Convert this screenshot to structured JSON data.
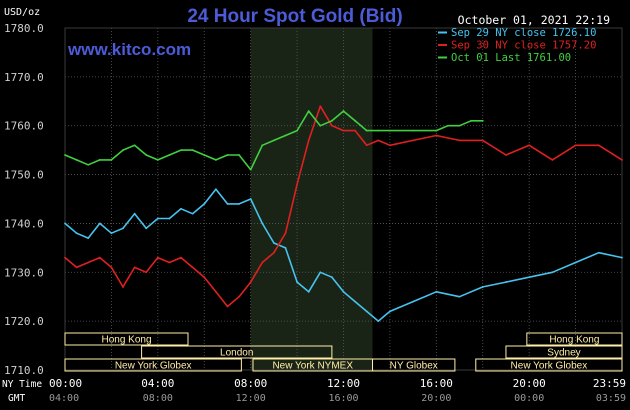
{
  "chart_data": {
    "type": "line",
    "title": "24 Hour Spot Gold (Bid)",
    "watermark": "www.kitco.com",
    "timestamp": "October 01, 2021 22:19",
    "ylabel": "USD/oz",
    "ylim": [
      1710,
      1780
    ],
    "yticks": [
      "1780.0",
      "1770.0",
      "1760.0",
      "1750.0",
      "1740.0",
      "1730.0",
      "1720.0",
      "1710.0"
    ],
    "x_ny_label": "NY Time",
    "x_gmt_label": "GMT",
    "x_ny_ticks": [
      "00:00",
      "04:00",
      "08:00",
      "12:00",
      "16:00",
      "20:00",
      "23:59"
    ],
    "x_gmt_ticks": [
      "04:00",
      "08:00",
      "12:00",
      "16:00",
      "20:00",
      "00:00",
      "03:59"
    ],
    "xlim_hours": [
      0,
      24
    ],
    "highlight_hours": [
      8,
      13.25
    ],
    "grid": true,
    "legend_position": "top-right",
    "series": [
      {
        "name": "Sep 29 NY close 1726.10",
        "color": "#46c3ee",
        "x": [
          0,
          0.5,
          1,
          1.5,
          2,
          2.5,
          3,
          3.5,
          4,
          4.5,
          5,
          5.5,
          6,
          6.5,
          7,
          7.5,
          8,
          8.5,
          9,
          9.5,
          10,
          10.5,
          11,
          11.5,
          12,
          12.5,
          13,
          13.5,
          14,
          15,
          16,
          17,
          18,
          19,
          20,
          21,
          22,
          23,
          24
        ],
        "values": [
          1740,
          1738,
          1737,
          1740,
          1738,
          1739,
          1742,
          1739,
          1741,
          1741,
          1743,
          1742,
          1744,
          1747,
          1744,
          1744,
          1745,
          1740,
          1736,
          1735,
          1728,
          1726,
          1730,
          1729,
          1726,
          1724,
          1722,
          1720,
          1722,
          1724,
          1726,
          1725,
          1727,
          1728,
          1729,
          1730,
          1732,
          1734,
          1733
        ]
      },
      {
        "name": "Sep 30 NY close 1757.20",
        "color": "#e02020",
        "x": [
          0,
          0.5,
          1,
          1.5,
          2,
          2.5,
          3,
          3.5,
          4,
          4.5,
          5,
          5.5,
          6,
          6.5,
          7,
          7.5,
          8,
          8.5,
          9,
          9.5,
          10,
          10.5,
          11,
          11.5,
          12,
          12.5,
          13,
          13.5,
          14,
          15,
          16,
          17,
          18,
          19,
          20,
          21,
          22,
          23,
          24
        ],
        "values": [
          1733,
          1731,
          1732,
          1733,
          1731,
          1727,
          1731,
          1730,
          1733,
          1732,
          1733,
          1731,
          1729,
          1726,
          1723,
          1725,
          1728,
          1732,
          1734,
          1738,
          1748,
          1757,
          1764,
          1760,
          1759,
          1759,
          1756,
          1757,
          1756,
          1757,
          1758,
          1757,
          1757,
          1754,
          1756,
          1753,
          1756,
          1756,
          1753
        ]
      },
      {
        "name": "Oct 01 Last 1761.00",
        "color": "#40d040",
        "x": [
          0,
          0.5,
          1,
          1.5,
          2,
          2.5,
          3,
          3.5,
          4,
          4.5,
          5,
          5.5,
          6,
          6.5,
          7,
          7.5,
          8,
          8.5,
          9,
          9.5,
          10,
          10.5,
          11,
          11.5,
          12,
          12.5,
          13,
          13.5,
          14,
          15,
          16,
          16.5,
          17,
          17.5,
          18
        ],
        "values": [
          1754,
          1753,
          1752,
          1753,
          1753,
          1755,
          1756,
          1754,
          1753,
          1754,
          1755,
          1755,
          1754,
          1753,
          1754,
          1754,
          1751,
          1756,
          1757,
          1758,
          1759,
          1763,
          1760,
          1761,
          1763,
          1761,
          1759,
          1759,
          1759,
          1759,
          1759,
          1760,
          1760,
          1761,
          1761
        ]
      }
    ]
  },
  "sessions": [
    {
      "label": "Hong Kong",
      "color": "#ffeea8",
      "row": 0,
      "start": 0,
      "end": 5.3
    },
    {
      "label": "Hong Kong",
      "color": "#ffeea8",
      "row": 0,
      "start": 19.9,
      "end": 24
    },
    {
      "label": "London",
      "color": "#ffeea8",
      "row": 1,
      "start": 3.3,
      "end": 11.5
    },
    {
      "label": "Sydney",
      "color": "#ffeea8",
      "row": 1,
      "start": 19.0,
      "end": 24
    },
    {
      "label": "New York Globex",
      "color": "#ffeea8",
      "row": 2,
      "start": 0,
      "end": 7.6
    },
    {
      "label": "New York NYMEX",
      "color": "#ffeea8",
      "row": 2,
      "start": 8.1,
      "end": 13.25
    },
    {
      "label": "NY Globex",
      "color": "#ffeea8",
      "row": 2,
      "start": 13.25,
      "end": 16.8
    },
    {
      "label": "New York Globex",
      "color": "#ffeea8",
      "row": 2,
      "start": 17.7,
      "end": 24
    }
  ],
  "colors": {
    "background": "#000000",
    "grid": "#5a5a5a",
    "highlight": "#1a2416",
    "title": "#4c5cd8",
    "watermark": "#4c5cd8",
    "text": "#ffffff",
    "tick_text": "#cfcfcf"
  }
}
